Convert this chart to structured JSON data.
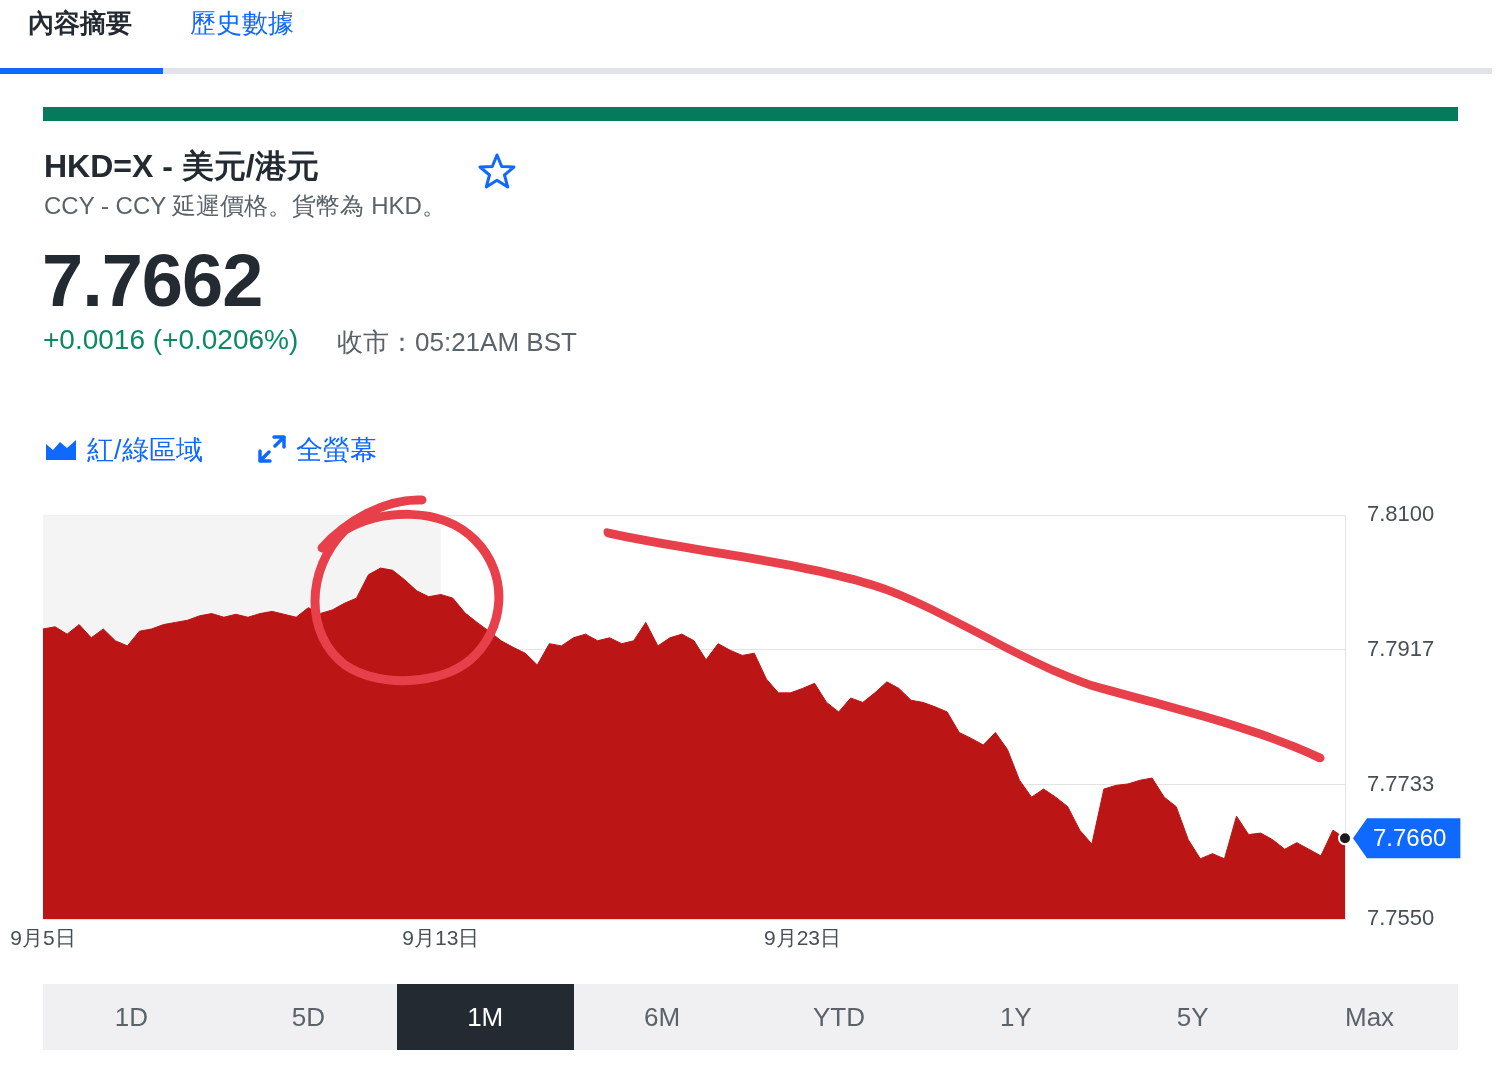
{
  "chart_data": {
    "type": "area",
    "title": "HKD=X - 美元/港元",
    "subtitle": "CCY - CCY 延遲價格。貨幣為 HKD。",
    "annotations": [
      "內容摘要",
      "歷史數據",
      "7.7662",
      "+0.0016 (+0.0206%)",
      "收市：05:21AM BST",
      "紅/綠區域",
      "全螢幕",
      "1D",
      "5D",
      "1M",
      "6M",
      "YTD",
      "1Y",
      "5Y",
      "Max",
      "7.7660"
    ],
    "categories": [
      "9月5日",
      null,
      null,
      null,
      null,
      null,
      null,
      null,
      null,
      null,
      null,
      null,
      null,
      null,
      null,
      null,
      null,
      null,
      null,
      null,
      null,
      null,
      null,
      null,
      null,
      null,
      null,
      null,
      null,
      null,
      null,
      null,
      null,
      "9月13日",
      null,
      null,
      null,
      null,
      null,
      null,
      null,
      null,
      null,
      null,
      null,
      null,
      null,
      null,
      null,
      null,
      null,
      null,
      null,
      null,
      null,
      null,
      null,
      null,
      null,
      null,
      null,
      null,
      null,
      "9月23日",
      null,
      null,
      null,
      null,
      null,
      null,
      null,
      null,
      null,
      null,
      null,
      null,
      null,
      null,
      null,
      null,
      null,
      null,
      null,
      null,
      null,
      null,
      null,
      null,
      null,
      null,
      null,
      null,
      null,
      null,
      null,
      null,
      null,
      null,
      null,
      null,
      null,
      null,
      null,
      null,
      null,
      null,
      null,
      null,
      null
    ],
    "series": [
      {
        "color": "#bb1515",
        "values": [
          7.7945,
          7.7948,
          7.7938,
          7.7951,
          7.7933,
          7.7945,
          7.7929,
          7.7922,
          7.7942,
          7.7945,
          7.7951,
          7.7954,
          7.7957,
          7.7963,
          7.7966,
          7.7961,
          7.7965,
          7.7961,
          7.7966,
          7.7969,
          7.7965,
          7.7961,
          7.7974,
          7.7966,
          7.7971,
          7.798,
          7.7987,
          7.8019,
          7.8028,
          7.8025,
          7.8012,
          7.7997,
          7.7989,
          7.7992,
          7.7987,
          7.7967,
          7.7954,
          7.7942,
          7.7929,
          7.792,
          7.7912,
          7.7896,
          7.7925,
          7.7922,
          7.7933,
          7.7938,
          7.7929,
          7.7933,
          7.7925,
          7.7929,
          7.7954,
          7.7922,
          7.7933,
          7.7938,
          7.7929,
          7.7903,
          7.7925,
          7.7916,
          7.7909,
          7.7912,
          7.7877,
          7.7858,
          7.7858,
          7.7864,
          7.7871,
          7.7845,
          7.7832,
          7.7851,
          7.7845,
          7.7858,
          7.7873,
          7.7864,
          7.7848,
          7.7845,
          7.7839,
          7.7832,
          7.7804,
          7.7796,
          7.7787,
          7.7804,
          7.7781,
          7.7739,
          7.7716,
          7.7727,
          7.7716,
          7.7703,
          7.7671,
          7.7652,
          7.7727,
          7.7732,
          7.7734,
          7.7739,
          7.7742,
          7.7716,
          7.7703,
          7.7658,
          7.7632,
          7.7639,
          7.7632,
          7.769,
          7.7665,
          7.7667,
          7.7658,
          7.7645,
          7.7654,
          7.7645,
          7.7636,
          7.7671,
          7.766
        ]
      }
    ],
    "ylim": [
      7.755,
      7.81
    ],
    "yticks": [
      {
        "value": 7.81,
        "label": "7.8100"
      },
      {
        "value": 7.7917,
        "label": "7.7917"
      },
      {
        "value": 7.7733,
        "label": "7.7733"
      },
      {
        "value": 7.755,
        "label": "7.7550"
      }
    ],
    "grid": "y",
    "bands": [
      {
        "axis": "x",
        "from": "9月5日",
        "to": "9月13日",
        "color": "#f4f4f4"
      }
    ]
  }
}
